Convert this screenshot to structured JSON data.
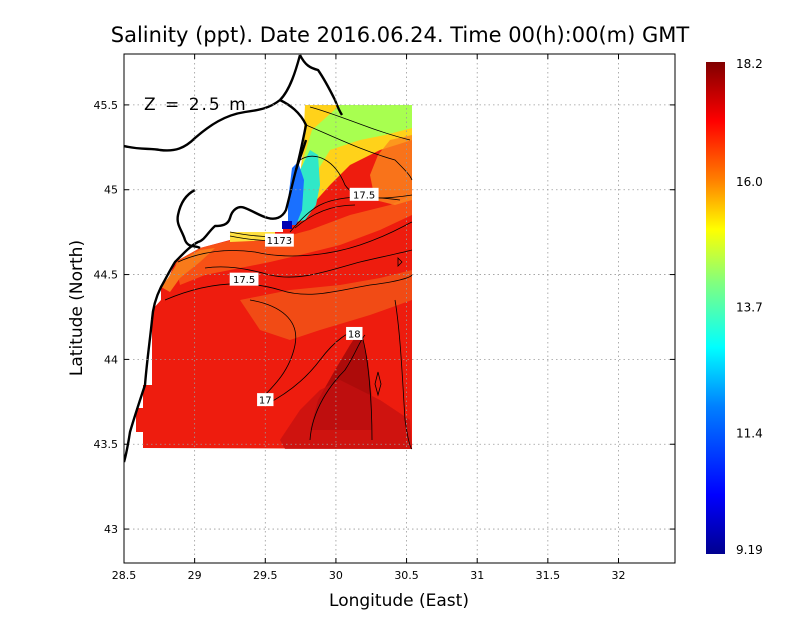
{
  "title": "Salinity (ppt). Date 2016.06.24. Time 00(h):00(m) GMT",
  "depth_label": "Z = 2.5 m",
  "x_axis": {
    "label": "Longitude (East)",
    "range": [
      28.5,
      32.4
    ],
    "ticks": [
      {
        "value": 28.5,
        "label": "28.5"
      },
      {
        "value": 29,
        "label": "29"
      },
      {
        "value": 29.5,
        "label": "29.5"
      },
      {
        "value": 30,
        "label": "30"
      },
      {
        "value": 30.5,
        "label": "30.5"
      },
      {
        "value": 31,
        "label": "31"
      },
      {
        "value": 31.5,
        "label": "31.5"
      },
      {
        "value": 32,
        "label": "32"
      }
    ]
  },
  "y_axis": {
    "label": "Latitude (North)",
    "range": [
      42.8,
      45.8
    ],
    "ticks": [
      {
        "value": 43,
        "label": "43"
      },
      {
        "value": 43.5,
        "label": "43.5"
      },
      {
        "value": 44,
        "label": "44"
      },
      {
        "value": 44.5,
        "label": "44.5"
      },
      {
        "value": 45,
        "label": "45"
      },
      {
        "value": 45.5,
        "label": "45.5"
      }
    ]
  },
  "grid": true,
  "colorbar": {
    "range": [
      9.19,
      18.2
    ],
    "ticks": [
      {
        "value": 18.2,
        "label": "18.2"
      },
      {
        "value": 16.0,
        "label": "16.0"
      },
      {
        "value": 13.7,
        "label": "13.7"
      },
      {
        "value": 11.4,
        "label": "11.4"
      },
      {
        "value": 9.19,
        "label": "9.19"
      }
    ],
    "colors": [
      "#00008f",
      "#0000ff",
      "#0080ff",
      "#00ffff",
      "#80ff80",
      "#ffff00",
      "#ff8000",
      "#ff0000",
      "#800000"
    ]
  },
  "contour_labels": [
    {
      "text": "17.5",
      "lon": 30.2,
      "lat": 44.97
    },
    {
      "text": "17.5",
      "lon": 29.35,
      "lat": 44.47
    },
    {
      "text": "17",
      "lon": 29.5,
      "lat": 43.76
    },
    {
      "text": "18",
      "lon": 30.13,
      "lat": 44.15
    },
    {
      "text": "1173",
      "lon": 29.6,
      "lat": 44.7
    }
  ]
}
